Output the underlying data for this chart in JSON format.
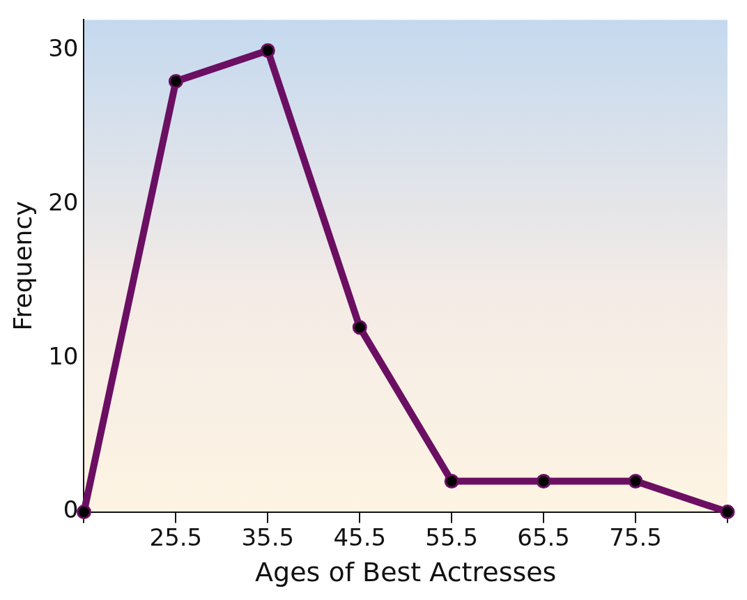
{
  "chart_data": {
    "type": "line",
    "xlabel": "Ages of Best Actresses",
    "ylabel": "Frequency",
    "x": [
      15.5,
      25.5,
      35.5,
      45.5,
      55.5,
      65.5,
      75.5,
      85.5
    ],
    "series": [
      {
        "color": "#6b0f62",
        "values": [
          0,
          28,
          30,
          12,
          2,
          2,
          2,
          0
        ]
      }
    ],
    "xlim": [
      15.5,
      85.5
    ],
    "xticks": [
      {
        "value": 15.5,
        "label": null
      },
      25.5,
      35.5,
      45.5,
      55.5,
      65.5,
      75.5,
      {
        "value": 85.5,
        "label": null
      }
    ],
    "ylim": [
      0,
      32
    ],
    "yticks": [
      0,
      10,
      20,
      30
    ],
    "grid": false,
    "legend": false,
    "marker": "circle",
    "line_style": "solid"
  }
}
